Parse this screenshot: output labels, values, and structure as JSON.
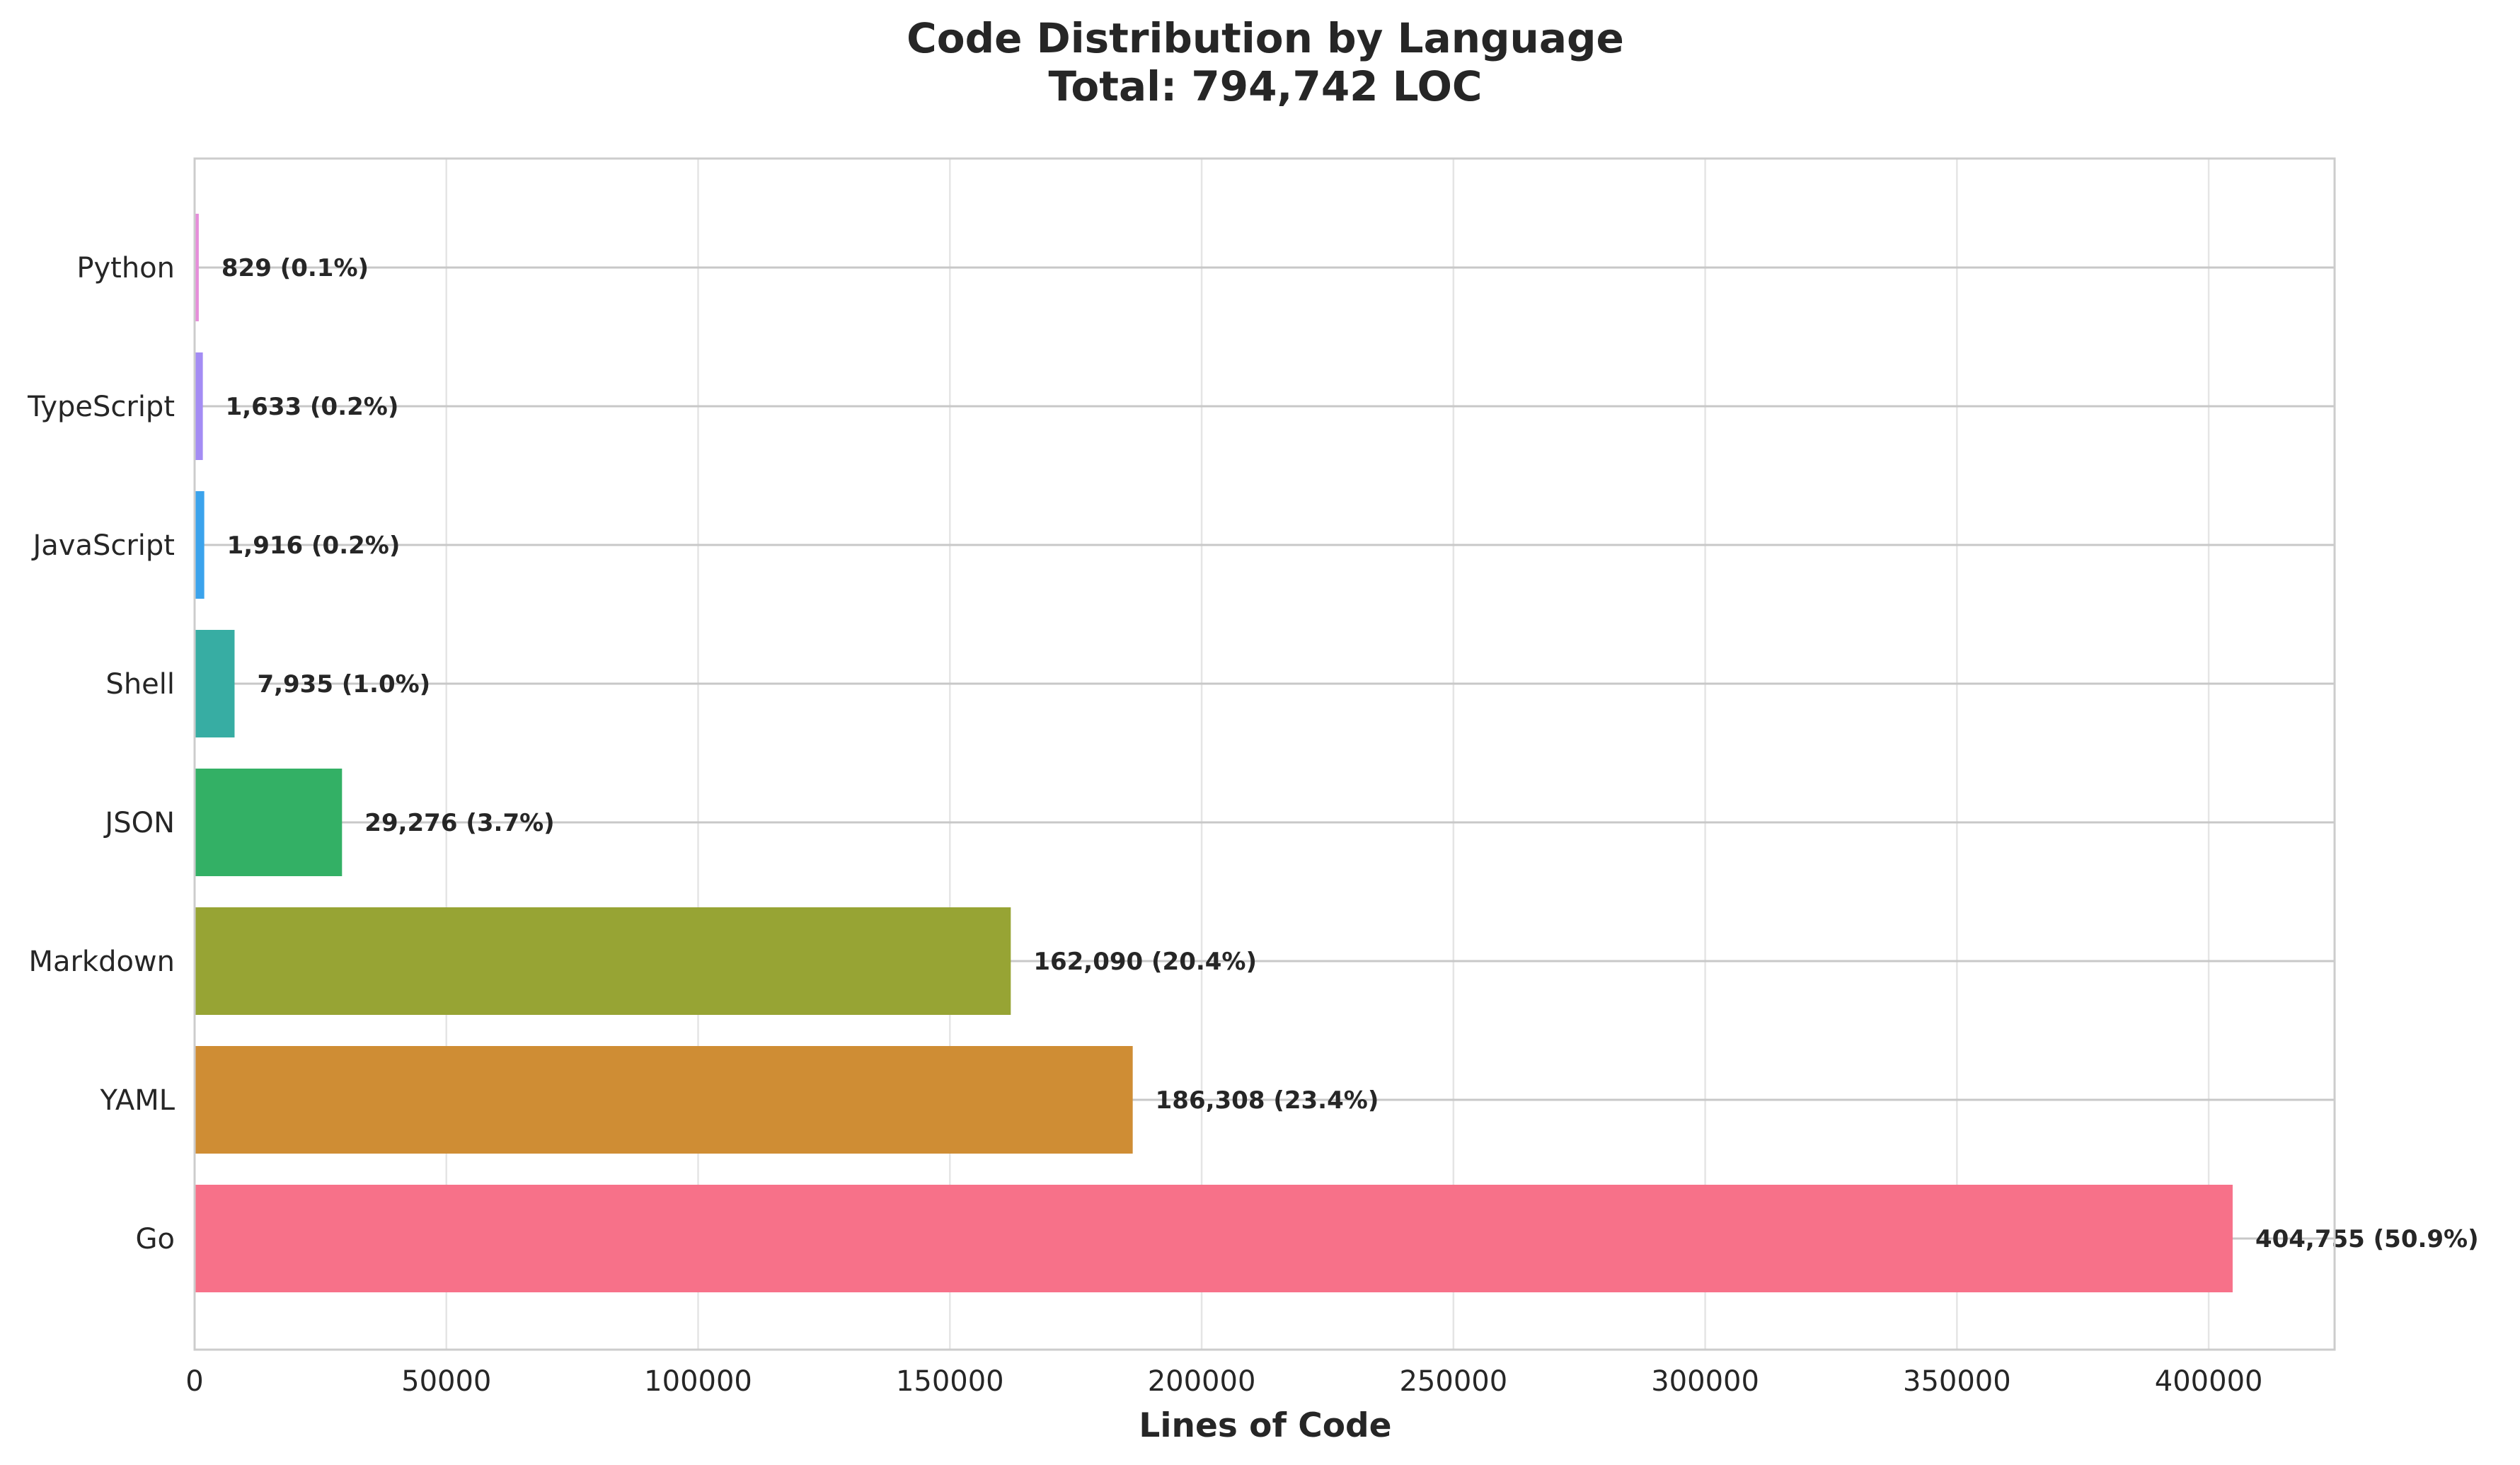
{
  "chart_data": {
    "type": "bar",
    "orientation": "horizontal",
    "title_line1": "Code Distribution by Language",
    "title_line2": "Total: 794,742 LOC",
    "xlabel": "Lines of Code",
    "ylabel": "",
    "xlim": [
      0,
      425000
    ],
    "xticks": [
      0,
      50000,
      100000,
      150000,
      200000,
      250000,
      300000,
      350000,
      400000
    ],
    "grid": true,
    "legend": "none",
    "categories": [
      "Go",
      "YAML",
      "Markdown",
      "JSON",
      "Shell",
      "JavaScript",
      "TypeScript",
      "Python"
    ],
    "values": [
      404755,
      186308,
      162090,
      29276,
      7935,
      1916,
      1633,
      829
    ],
    "data_labels": [
      "404,755 (50.9%)",
      "186,308 (23.4%)",
      "162,090 (20.4%)",
      "29,276 (3.7%)",
      "7,935 (1.0%)",
      "1,916 (0.2%)",
      "1,633 (0.2%)",
      "829 (0.1%)"
    ],
    "colors": [
      "#f77189",
      "#cf8d34",
      "#97a434",
      "#33b065",
      "#37ada3",
      "#3ba3ec",
      "#a48cf4",
      "#e68eda"
    ],
    "grid_color": "#e5e5e5",
    "zero_line_color": "#c8c8c8",
    "frame_color": "#cccccc"
  }
}
